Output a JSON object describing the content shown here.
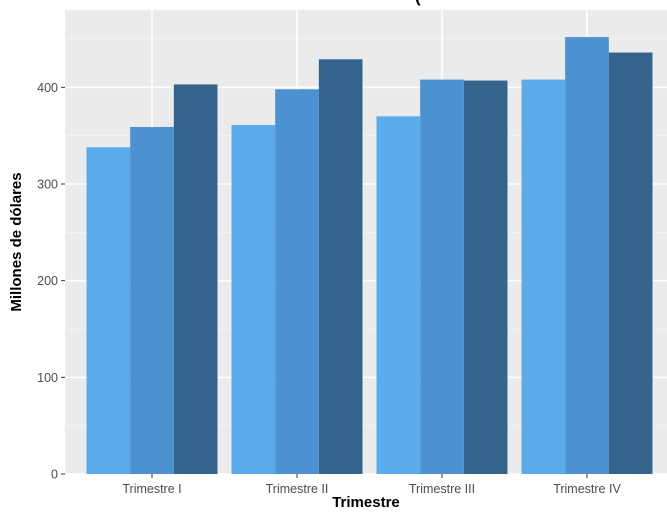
{
  "chart_data": {
    "type": "bar",
    "title": "(",
    "xlabel": "Trimestre",
    "ylabel": "Millones de dólares",
    "categories": [
      "Trimestre I",
      "Trimestre II",
      "Trimestre III",
      "Trimestre IV"
    ],
    "series": [
      {
        "values": [
          338,
          361,
          370,
          408
        ]
      },
      {
        "values": [
          359,
          398,
          408,
          452
        ]
      },
      {
        "values": [
          403,
          429,
          407,
          436
        ]
      }
    ],
    "ylim": [
      0,
      480
    ],
    "yticks": [
      0,
      100,
      200,
      300,
      400
    ],
    "grid": true,
    "legend": "none",
    "colors": {
      "series": [
        "#5aabeb",
        "#4d92d0",
        "#34638d"
      ],
      "panel_background": "#ebebeb",
      "grid_major": "#ffffff",
      "grid_minor": "#f5f5f5"
    }
  }
}
